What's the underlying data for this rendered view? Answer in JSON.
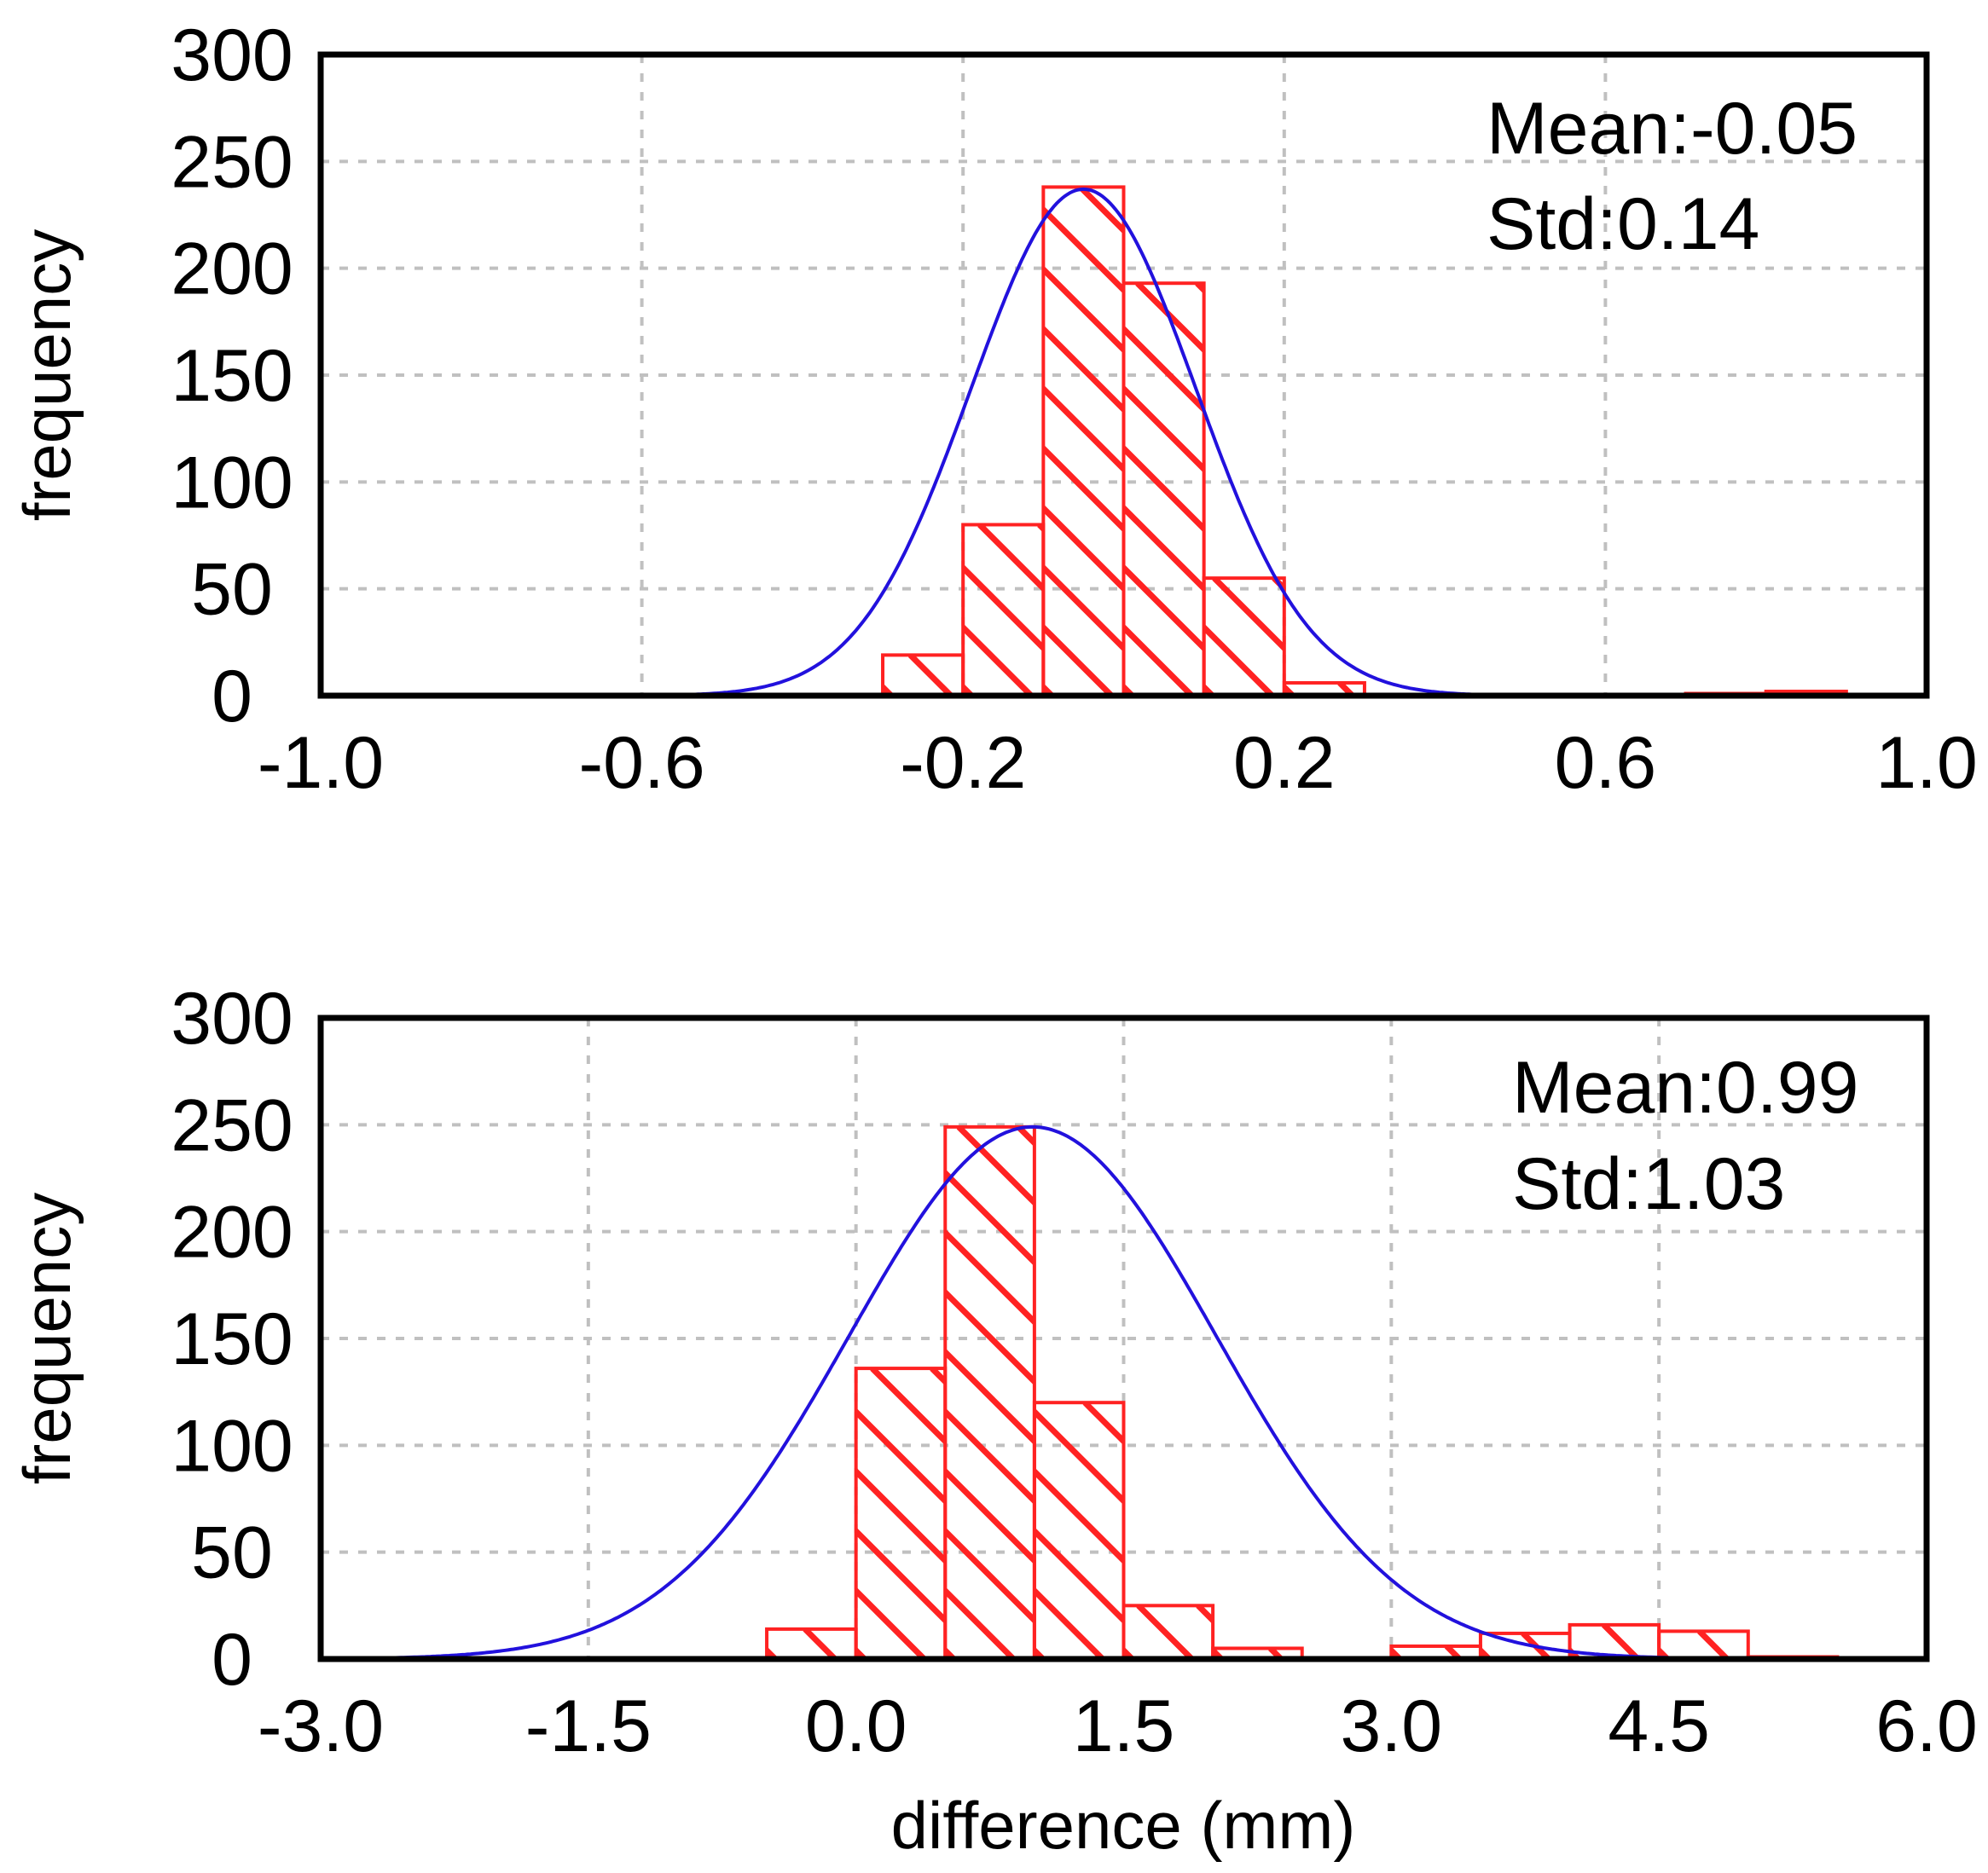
{
  "chart_data": [
    {
      "type": "bar",
      "title": "",
      "xlabel": "",
      "ylabel": "frequency",
      "xlim": [
        -1.0,
        1.0
      ],
      "ylim": [
        0,
        300
      ],
      "xticks": [
        "-1.0",
        "-0.6",
        "-0.2",
        "0.2",
        "0.6",
        "1.0"
      ],
      "yticks": [
        "0",
        "50",
        "100",
        "150",
        "200",
        "250",
        "300"
      ],
      "bin_width": 0.1,
      "bins": [
        {
          "start": -0.3,
          "value": 19
        },
        {
          "start": -0.2,
          "value": 80
        },
        {
          "start": -0.1,
          "value": 238
        },
        {
          "start": 0.0,
          "value": 193
        },
        {
          "start": 0.1,
          "value": 55
        },
        {
          "start": 0.2,
          "value": 6
        },
        {
          "start": 0.7,
          "value": 1
        },
        {
          "start": 0.8,
          "value": 2
        }
      ],
      "fit": {
        "mean": -0.05,
        "std": 0.14,
        "peak": 237
      },
      "annotations": [
        "Mean:-0.05",
        "Std:0.14"
      ],
      "grid": true
    },
    {
      "type": "bar",
      "title": "",
      "xlabel": "difference (mm)",
      "ylabel": "frequency",
      "xlim": [
        -3.0,
        6.0
      ],
      "ylim": [
        0,
        300
      ],
      "xticks": [
        "-3.0",
        "-1.5",
        "0.0",
        "1.5",
        "3.0",
        "4.5",
        "6.0"
      ],
      "yticks": [
        "0",
        "50",
        "100",
        "150",
        "200",
        "250",
        "300"
      ],
      "bin_width": 0.5,
      "bins": [
        {
          "start": -0.5,
          "value": 14
        },
        {
          "start": 0.0,
          "value": 136
        },
        {
          "start": 0.5,
          "value": 249
        },
        {
          "start": 1.0,
          "value": 120
        },
        {
          "start": 1.5,
          "value": 25
        },
        {
          "start": 2.0,
          "value": 5
        },
        {
          "start": 3.0,
          "value": 6
        },
        {
          "start": 3.5,
          "value": 12
        },
        {
          "start": 4.0,
          "value": 16
        },
        {
          "start": 4.5,
          "value": 13
        },
        {
          "start": 5.0,
          "value": 1
        }
      ],
      "fit": {
        "mean": 0.99,
        "std": 1.03,
        "peak": 249
      },
      "annotations": [
        "Mean:0.99",
        "Std:1.03"
      ],
      "grid": true
    }
  ],
  "colors": {
    "bar": "#ff2222",
    "fit": "#2211dd",
    "grid": "#c0c0c0",
    "axis": "#000000"
  }
}
